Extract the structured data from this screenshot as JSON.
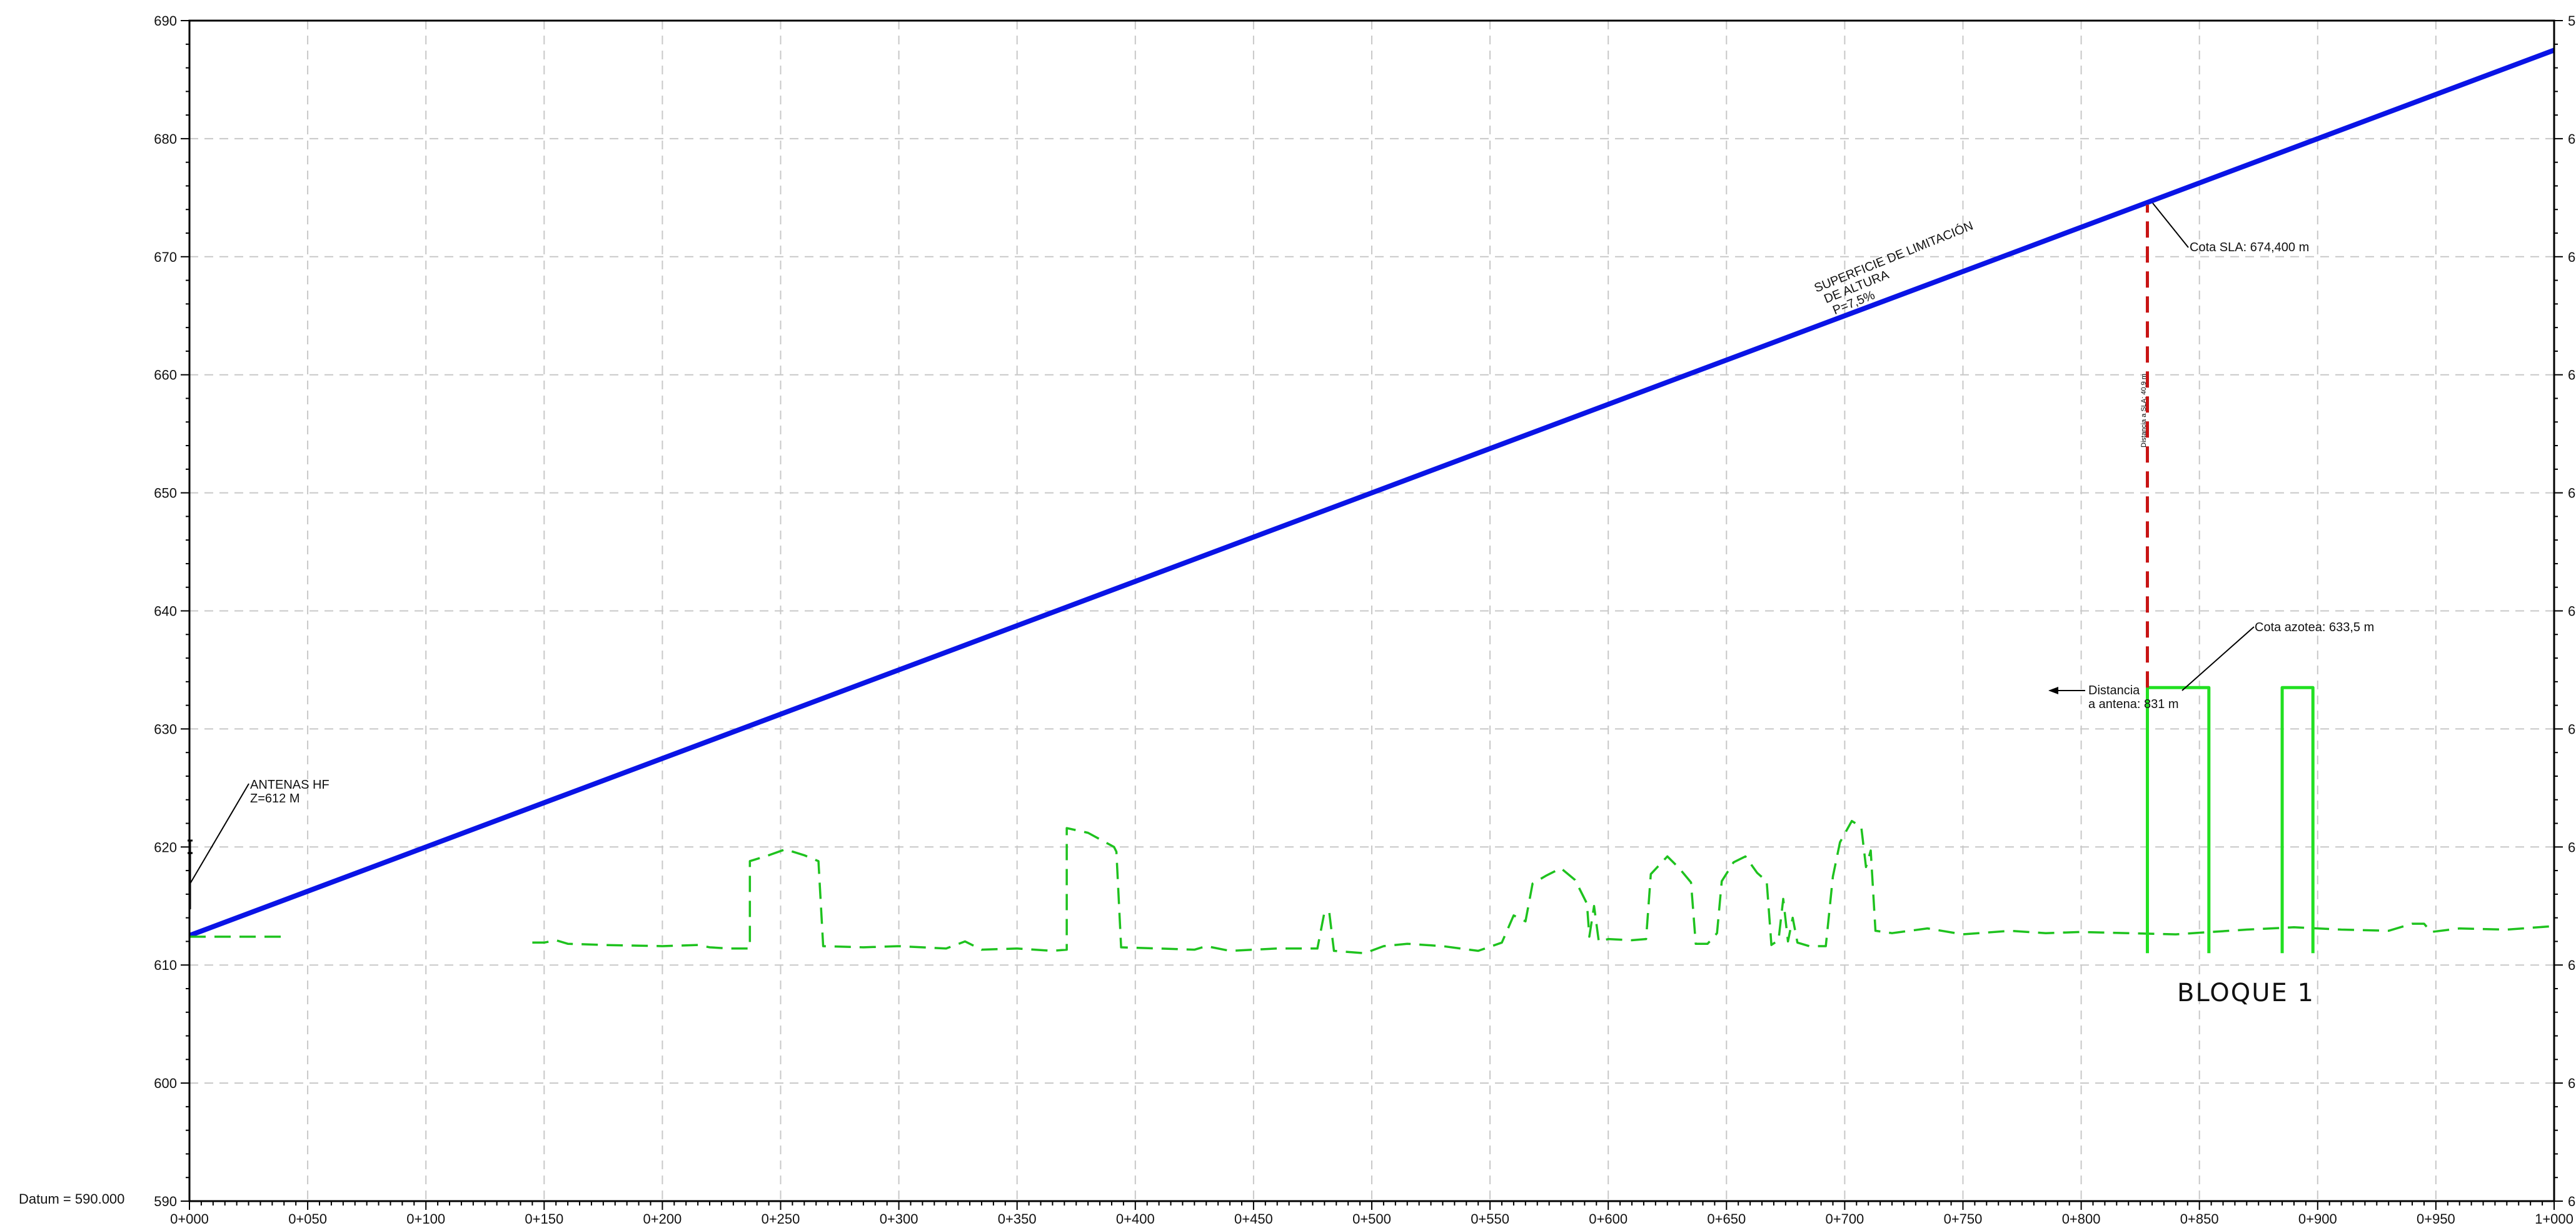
{
  "chart_data": {
    "type": "line",
    "xlim": [
      0,
      1000
    ],
    "ylim": [
      590,
      690
    ],
    "grid": true,
    "datum_label": "Datum = 590.000",
    "x_ticks": [
      {
        "v": 0,
        "label": "0+000"
      },
      {
        "v": 50,
        "label": "0+050"
      },
      {
        "v": 100,
        "label": "0+100"
      },
      {
        "v": 150,
        "label": "0+150"
      },
      {
        "v": 200,
        "label": "0+200"
      },
      {
        "v": 250,
        "label": "0+250"
      },
      {
        "v": 300,
        "label": "0+300"
      },
      {
        "v": 350,
        "label": "0+350"
      },
      {
        "v": 400,
        "label": "0+400"
      },
      {
        "v": 450,
        "label": "0+450"
      },
      {
        "v": 500,
        "label": "0+500"
      },
      {
        "v": 550,
        "label": "0+550"
      },
      {
        "v": 600,
        "label": "0+600"
      },
      {
        "v": 650,
        "label": "0+650"
      },
      {
        "v": 700,
        "label": "0+700"
      },
      {
        "v": 750,
        "label": "0+750"
      },
      {
        "v": 800,
        "label": "0+800"
      },
      {
        "v": 850,
        "label": "0+850"
      },
      {
        "v": 900,
        "label": "0+900"
      },
      {
        "v": 950,
        "label": "0+950"
      },
      {
        "v": 1000,
        "label": "1+000"
      }
    ],
    "y_ticks": [
      {
        "v": 590,
        "label": "590"
      },
      {
        "v": 600,
        "label": "600"
      },
      {
        "v": 610,
        "label": "610"
      },
      {
        "v": 620,
        "label": "620"
      },
      {
        "v": 630,
        "label": "630"
      },
      {
        "v": 640,
        "label": "640"
      },
      {
        "v": 650,
        "label": "650"
      },
      {
        "v": 660,
        "label": "660"
      },
      {
        "v": 670,
        "label": "670"
      },
      {
        "v": 680,
        "label": "680"
      },
      {
        "v": 690,
        "label": "690"
      }
    ],
    "y_ticks_right_visible": [
      "6",
      "6",
      "6",
      "6",
      "6",
      "6",
      "6",
      "6",
      "6",
      "6",
      "5"
    ],
    "series": [
      {
        "style": "solid",
        "color": "#0a14e6",
        "points": [
          [
            0,
            612.5
          ],
          [
            1000,
            687.5
          ]
        ]
      },
      {
        "style": "dashed",
        "color": "#1ec21e",
        "segments": [
          [
            [
              0,
              612.4
            ],
            [
              40,
              612.4
            ]
          ],
          [
            [
              145,
              611.9
            ],
            [
              150,
              611.9
            ],
            [
              155,
              612.1
            ],
            [
              160,
              611.8
            ],
            [
              175,
              611.7
            ],
            [
              200,
              611.6
            ],
            [
              215,
              611.7
            ],
            [
              220,
              611.5
            ],
            [
              228,
              611.4
            ],
            [
              237,
              611.4
            ],
            [
              237,
              618.8
            ],
            [
              245,
              619.3
            ],
            [
              252,
              619.8
            ],
            [
              260,
              619.3
            ],
            [
              266,
              618.8
            ],
            [
              268,
              611.6
            ],
            [
              285,
              611.5
            ],
            [
              300,
              611.6
            ],
            [
              320,
              611.4
            ],
            [
              328,
              612.0
            ],
            [
              335,
              611.3
            ],
            [
              350,
              611.4
            ],
            [
              365,
              611.2
            ],
            [
              371,
              611.3
            ],
            [
              371,
              621.6
            ],
            [
              380,
              621.2
            ],
            [
              391,
              620.0
            ],
            [
              392,
              619.6
            ],
            [
              394,
              611.5
            ],
            [
              410,
              611.4
            ],
            [
              425,
              611.3
            ],
            [
              430,
              611.6
            ],
            [
              440,
              611.2
            ],
            [
              460,
              611.4
            ],
            [
              477,
              611.4
            ],
            [
              480,
              614.5
            ],
            [
              482,
              614.5
            ],
            [
              484,
              611.2
            ],
            [
              497,
              611.0
            ],
            [
              505,
              611.6
            ],
            [
              515,
              611.8
            ],
            [
              530,
              611.6
            ],
            [
              545,
              611.2
            ],
            [
              555,
              611.9
            ],
            [
              560,
              614.2
            ],
            [
              565,
              613.7
            ],
            [
              568,
              616.9
            ],
            [
              574,
              617.6
            ],
            [
              580,
              618.2
            ],
            [
              586,
              617.2
            ],
            [
              591,
              615.2
            ],
            [
              592,
              612.4
            ],
            [
              594,
              615.0
            ],
            [
              596,
              612.0
            ],
            [
              600,
              612.2
            ],
            [
              610,
              612.1
            ],
            [
              616,
              612.2
            ],
            [
              618,
              617.7
            ],
            [
              625,
              619.2
            ],
            [
              630,
              618.2
            ],
            [
              635,
              617.0
            ],
            [
              637,
              611.8
            ],
            [
              642,
              611.8
            ],
            [
              646,
              612.7
            ],
            [
              648,
              617.1
            ],
            [
              653,
              618.7
            ],
            [
              658,
              619.2
            ],
            [
              663,
              617.8
            ],
            [
              667,
              617.1
            ],
            [
              669,
              611.7
            ],
            [
              672,
              612.1
            ],
            [
              674,
              615.6
            ],
            [
              676,
              612.0
            ],
            [
              678,
              614.0
            ],
            [
              680,
              611.9
            ],
            [
              685,
              611.6
            ],
            [
              692,
              611.6
            ],
            [
              695,
              617.5
            ],
            [
              698,
              620.4
            ],
            [
              703,
              622.2
            ],
            [
              707,
              621.7
            ],
            [
              709,
              618.3
            ],
            [
              711,
              619.7
            ],
            [
              713,
              612.9
            ],
            [
              720,
              612.7
            ],
            [
              735,
              613.1
            ],
            [
              750,
              612.6
            ],
            [
              770,
              612.9
            ],
            [
              785,
              612.7
            ],
            [
              800,
              612.8
            ],
            [
              820,
              612.7
            ],
            [
              840,
              612.6
            ],
            [
              855,
              612.8
            ],
            [
              870,
              613.0
            ],
            [
              890,
              613.2
            ],
            [
              910,
              613.0
            ],
            [
              930,
              612.9
            ],
            [
              940,
              613.5
            ],
            [
              945,
              613.5
            ],
            [
              948,
              612.8
            ],
            [
              960,
              613.1
            ],
            [
              980,
              613.0
            ],
            [
              1000,
              613.3
            ]
          ]
        ]
      },
      {
        "style": "solid",
        "color": "#22e022",
        "segments": [
          [
            [
              828,
              611
            ],
            [
              828,
              633.5
            ],
            [
              854,
              633.5
            ],
            [
              854,
              611
            ]
          ],
          [
            [
              885,
              611
            ],
            [
              885,
              633.5
            ],
            [
              898,
              633.5
            ],
            [
              898,
              611
            ]
          ]
        ]
      },
      {
        "style": "dashed",
        "color": "#c81414",
        "points": [
          [
            828,
            633.5
          ],
          [
            828,
            674.4
          ]
        ]
      }
    ],
    "annotations": {
      "sla_title": [
        "SUPERFICIE DE LIMITACIÓN",
        "DE ALTURA",
        "P=7,5%"
      ],
      "antenas": [
        "ANTENAS HF",
        "Z=612 M"
      ],
      "cota_sla": "Cota SLA: 674,400 m",
      "cota_azotea": "Cota azotea: 633,5 m",
      "distancia_antena": [
        "Distancia",
        "a antena: 831 m"
      ],
      "distancia_sla": "Distancia a SLA: 40,9 m",
      "bloque": "BLOQUE 1"
    }
  }
}
